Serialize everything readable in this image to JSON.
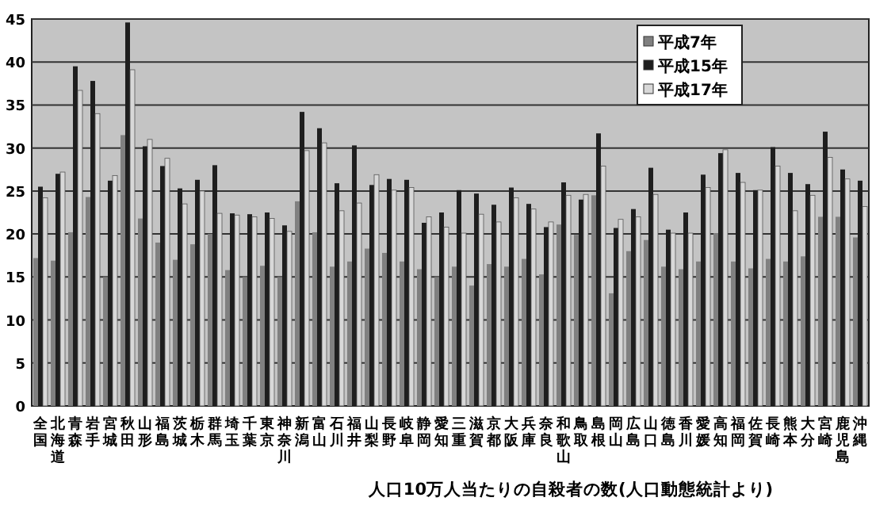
{
  "chart_data": {
    "type": "bar",
    "xlabel": "人口10万人当たりの自殺者の数(人口動態統計より)",
    "categories": [
      "全国",
      "北海道",
      "青森",
      "岩手",
      "宮城",
      "秋田",
      "山形",
      "福島",
      "茨城",
      "栃木",
      "群馬",
      "埼玉",
      "千葉",
      "東京",
      "神奈川",
      "新潟",
      "富山",
      "石川",
      "福井",
      "山梨",
      "長野",
      "岐阜",
      "静岡",
      "愛知",
      "三重",
      "滋賀",
      "京都",
      "大阪",
      "兵庫",
      "奈良",
      "和歌山",
      "鳥取",
      "島根",
      "岡山",
      "広島",
      "山口",
      "徳島",
      "香川",
      "愛媛",
      "高知",
      "福岡",
      "佐賀",
      "長崎",
      "熊本",
      "大分",
      "宮崎",
      "鹿児島",
      "沖縄"
    ],
    "series": [
      {
        "name": "平成7年",
        "color": "#808080",
        "values": [
          17.2,
          16.9,
          20.2,
          24.3,
          15.0,
          31.5,
          21.8,
          19.0,
          17.0,
          18.8,
          20.0,
          15.8,
          15.0,
          16.3,
          15.0,
          23.8,
          20.2,
          16.2,
          16.8,
          18.3,
          17.8,
          16.8,
          15.9,
          15.0,
          16.2,
          14.0,
          16.5,
          16.2,
          17.1,
          15.3,
          21.1,
          19.9,
          24.5,
          13.1,
          18.0,
          19.3,
          16.2,
          15.9,
          16.8,
          20.1,
          16.8,
          16.0,
          17.1,
          16.8,
          17.4,
          22.0,
          22.0,
          19.6
        ]
      },
      {
        "name": "平成15年",
        "color": "#1e1e1e",
        "values": [
          25.5,
          27.0,
          39.5,
          37.8,
          26.2,
          44.6,
          30.2,
          27.9,
          25.3,
          26.3,
          28.0,
          22.4,
          22.3,
          22.5,
          21.0,
          34.2,
          32.3,
          25.9,
          30.3,
          25.7,
          26.4,
          26.3,
          21.3,
          22.5,
          25.1,
          24.7,
          23.4,
          25.4,
          23.5,
          20.8,
          26.0,
          24.0,
          31.7,
          20.7,
          22.9,
          27.7,
          20.5,
          22.5,
          26.9,
          29.4,
          27.1,
          25.1,
          30.1,
          27.1,
          25.8,
          31.9,
          27.5,
          26.2
        ]
      },
      {
        "name": "平成17年",
        "color": "#d8d8d8",
        "values": [
          24.2,
          27.2,
          36.7,
          34.0,
          26.8,
          39.1,
          31.0,
          28.8,
          23.5,
          25.0,
          22.4,
          22.2,
          22.0,
          21.8,
          20.3,
          29.7,
          30.6,
          22.7,
          23.6,
          26.9,
          25.1,
          25.4,
          22.0,
          20.8,
          20.1,
          22.3,
          21.4,
          24.2,
          22.9,
          21.4,
          24.5,
          24.6,
          27.9,
          21.7,
          22.0,
          24.6,
          20.1,
          20.1,
          25.4,
          29.8,
          26.0,
          25.1,
          27.9,
          22.7,
          24.5,
          28.9,
          26.4,
          23.2
        ]
      }
    ],
    "ylim": [
      0,
      45
    ],
    "yticks": [
      0,
      5,
      10,
      15,
      20,
      25,
      30,
      35,
      40,
      45
    ],
    "grid": "y",
    "legend": "top right"
  }
}
